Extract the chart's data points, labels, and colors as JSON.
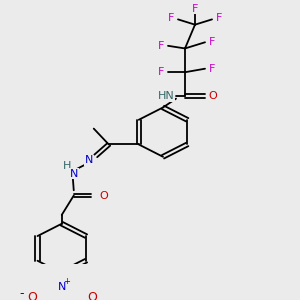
{
  "background": "#ebebeb",
  "fig_size": [
    3.0,
    3.0
  ],
  "dpi": 100,
  "colors": {
    "black": "#000000",
    "blue": "#0000cc",
    "red": "#cc0000",
    "magenta": "#cc00cc",
    "teal": "#336666"
  },
  "layout": {
    "xlim": [
      0,
      300
    ],
    "ylim": [
      0,
      300
    ]
  }
}
